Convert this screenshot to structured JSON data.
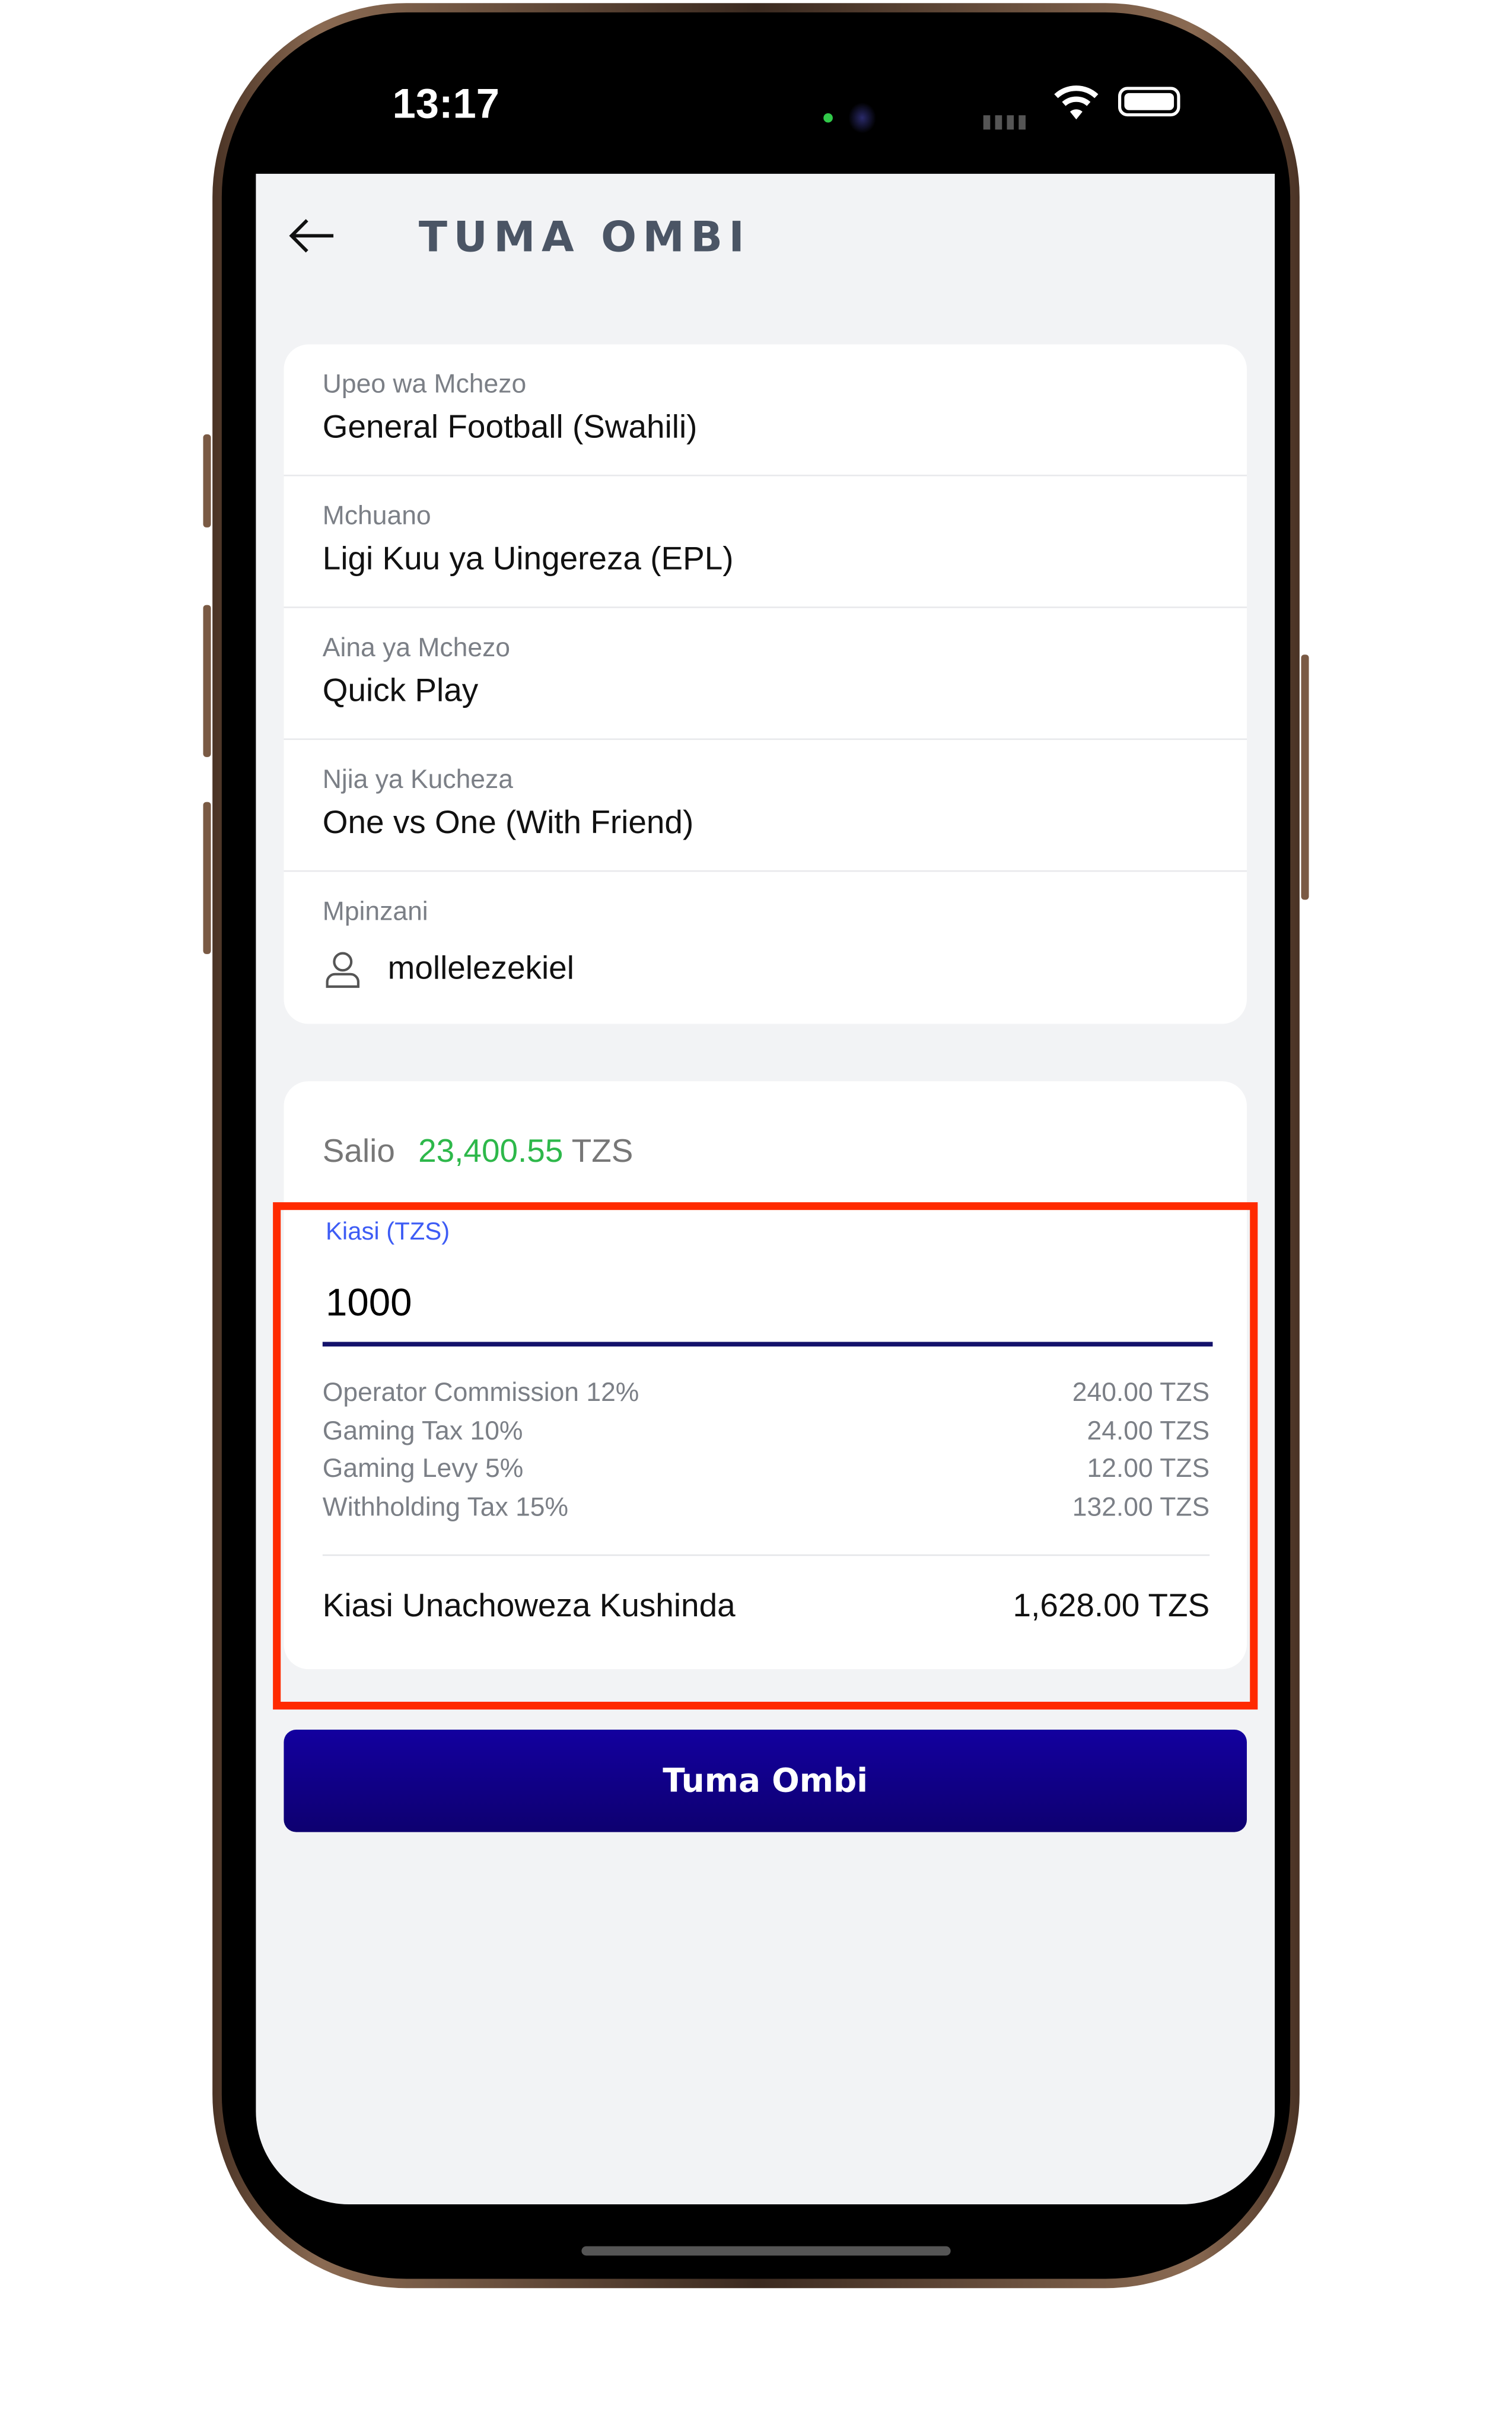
{
  "status_bar": {
    "time": "13:17"
  },
  "header": {
    "title": "TUMA OMBI",
    "back_icon": "arrow-left-icon"
  },
  "details": [
    {
      "label": "Upeo wa Mchezo",
      "value": "General Football (Swahili)"
    },
    {
      "label": "Mchuano",
      "value": "Ligi Kuu ya Uingereza (EPL)"
    },
    {
      "label": "Aina ya Mchezo",
      "value": "Quick Play"
    },
    {
      "label": "Njia ya Kucheza",
      "value": "One vs One (With Friend)"
    }
  ],
  "opponent": {
    "label": "Mpinzani",
    "value": "mollelezekiel",
    "icon": "user-icon"
  },
  "balance": {
    "label": "Salio",
    "amount": "23,400.55",
    "currency": "TZS",
    "color": "#2db84a"
  },
  "amount_field": {
    "label": "Kiasi (TZS)",
    "value": "1000"
  },
  "fees": [
    {
      "label": "Operator Commission 12%",
      "value": "240.00 TZS"
    },
    {
      "label": "Gaming Tax 10%",
      "value": "24.00 TZS"
    },
    {
      "label": "Gaming Levy 5%",
      "value": "12.00 TZS"
    },
    {
      "label": "Withholding Tax 15%",
      "value": "132.00 TZS"
    }
  ],
  "potential_win": {
    "label": "Kiasi Unachoweza Kushinda",
    "value": "1,628.00 TZS"
  },
  "submit_button": {
    "label": "Tuma Ombi",
    "color": "#13009f"
  },
  "highlight_color": "#ff2a00"
}
